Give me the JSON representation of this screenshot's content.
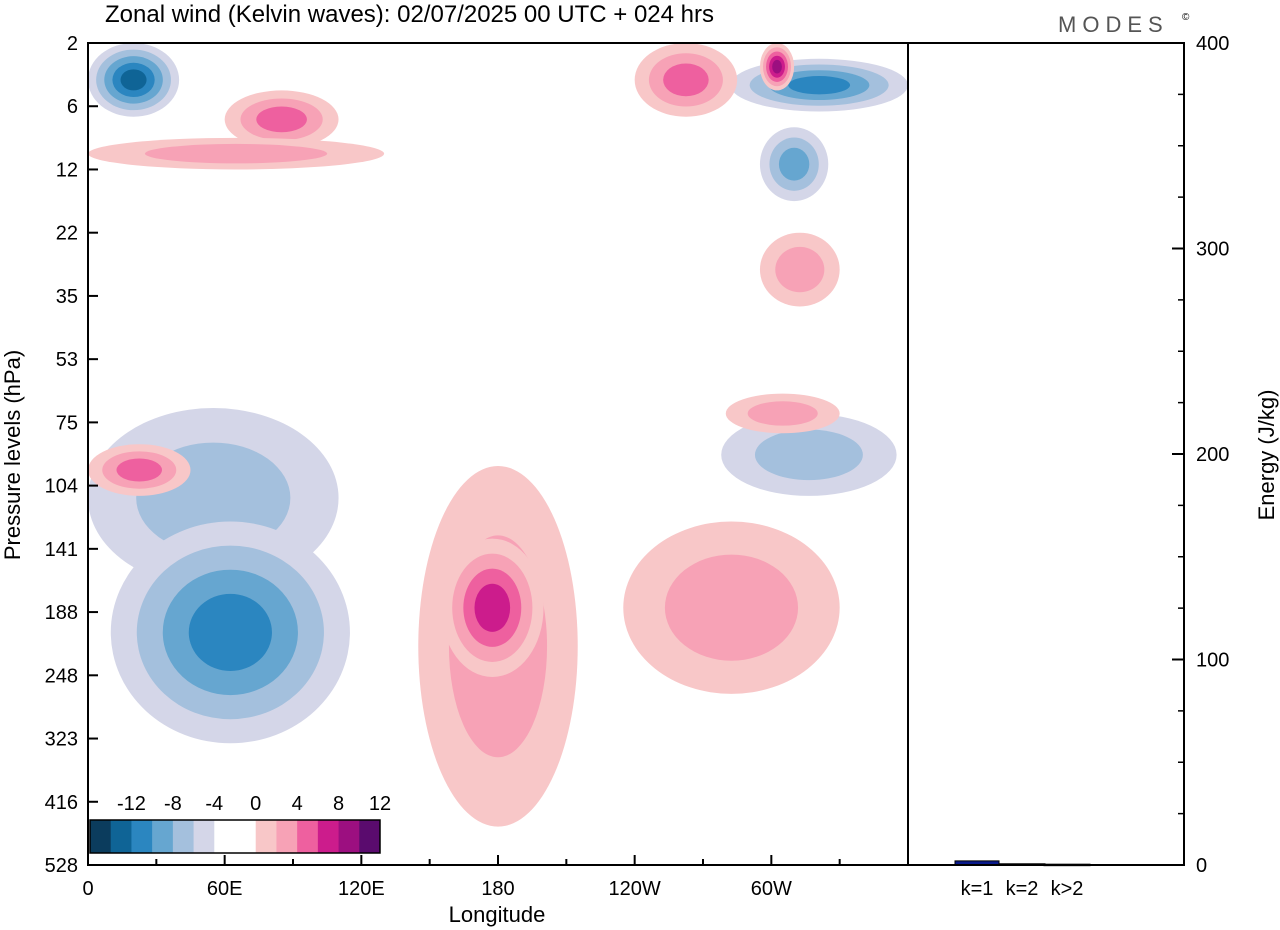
{
  "title": "Zonal wind (Kelvin waves):  02/07/2025  00 UTC  + 024 hrs",
  "logo": "MODES",
  "logo_mark": "©",
  "chart_data": [
    {
      "type": "heatmap",
      "title": "Zonal wind (Kelvin waves):  02/07/2025  00 UTC  + 024 hrs",
      "xlabel": "Longitude",
      "ylabel": "Pressure levels (hPa)",
      "x_ticks": [
        "0",
        "60E",
        "120E",
        "180",
        "120W",
        "60W"
      ],
      "x_tick_values": [
        0,
        60,
        120,
        180,
        240,
        300
      ],
      "xlim": [
        0,
        360
      ],
      "y_ticks": [
        "2",
        "6",
        "12",
        "22",
        "35",
        "53",
        "75",
        "104",
        "141",
        "188",
        "248",
        "323",
        "416",
        "528"
      ],
      "colorbar": {
        "labels": [
          "-12",
          "-8",
          "-4",
          "0",
          "4",
          "8",
          "12"
        ],
        "colors": [
          "#0b3c5d",
          "#0f6496",
          "#2b86c0",
          "#66a6d0",
          "#a4c0dd",
          "#d4d6e8",
          "#ffffff",
          "#ffffff",
          "#f8c7c8",
          "#f7a2b6",
          "#ee609f",
          "#cc1c8c",
          "#9c0f80",
          "#5a0b6e"
        ]
      },
      "regions": [
        {
          "lon": [
            0,
            40
          ],
          "level": [
            2,
            7
          ],
          "value": -10
        },
        {
          "lon": [
            282,
            360
          ],
          "level": [
            3,
            6.5
          ],
          "value": -8
        },
        {
          "lon": [
            295,
            310
          ],
          "level": [
            2,
            5
          ],
          "value": 9
        },
        {
          "lon": [
            240,
            285
          ],
          "level": [
            2,
            7
          ],
          "value": 6
        },
        {
          "lon": [
            60,
            110
          ],
          "level": [
            5,
            10
          ],
          "value": 5
        },
        {
          "lon": [
            0,
            130
          ],
          "level": [
            9,
            12
          ],
          "value": 3
        },
        {
          "lon": [
            295,
            325
          ],
          "level": [
            8,
            17
          ],
          "value": -5
        },
        {
          "lon": [
            295,
            330
          ],
          "level": [
            22,
            38
          ],
          "value": 3
        },
        {
          "lon": [
            0,
            110
          ],
          "level": [
            70,
            170
          ],
          "value": -3
        },
        {
          "lon": [
            0,
            45
          ],
          "level": [
            85,
            110
          ],
          "value": 6
        },
        {
          "lon": [
            10,
            115
          ],
          "level": [
            125,
            330
          ],
          "value": -7
        },
        {
          "lon": [
            145,
            215
          ],
          "level": [
            95,
            460
          ],
          "value": 3
        },
        {
          "lon": [
            155,
            200
          ],
          "level": [
            135,
            250
          ],
          "value": 7
        },
        {
          "lon": [
            235,
            330
          ],
          "level": [
            125,
            270
          ],
          "value": 3
        },
        {
          "lon": [
            278,
            355
          ],
          "level": [
            72,
            110
          ],
          "value": -4
        },
        {
          "lon": [
            280,
            330
          ],
          "level": [
            65,
            80
          ],
          "value": 3
        }
      ]
    },
    {
      "type": "bar",
      "categories": [
        "k=1",
        "k=2",
        "k>2"
      ],
      "values": [
        2,
        0.6,
        0.4
      ],
      "ylabel": "Energy (J/kg)",
      "ylim": [
        0,
        400
      ],
      "y_ticks": [
        "0",
        "100",
        "200",
        "300",
        "400"
      ],
      "bar_color": "#0a1a8c"
    }
  ]
}
